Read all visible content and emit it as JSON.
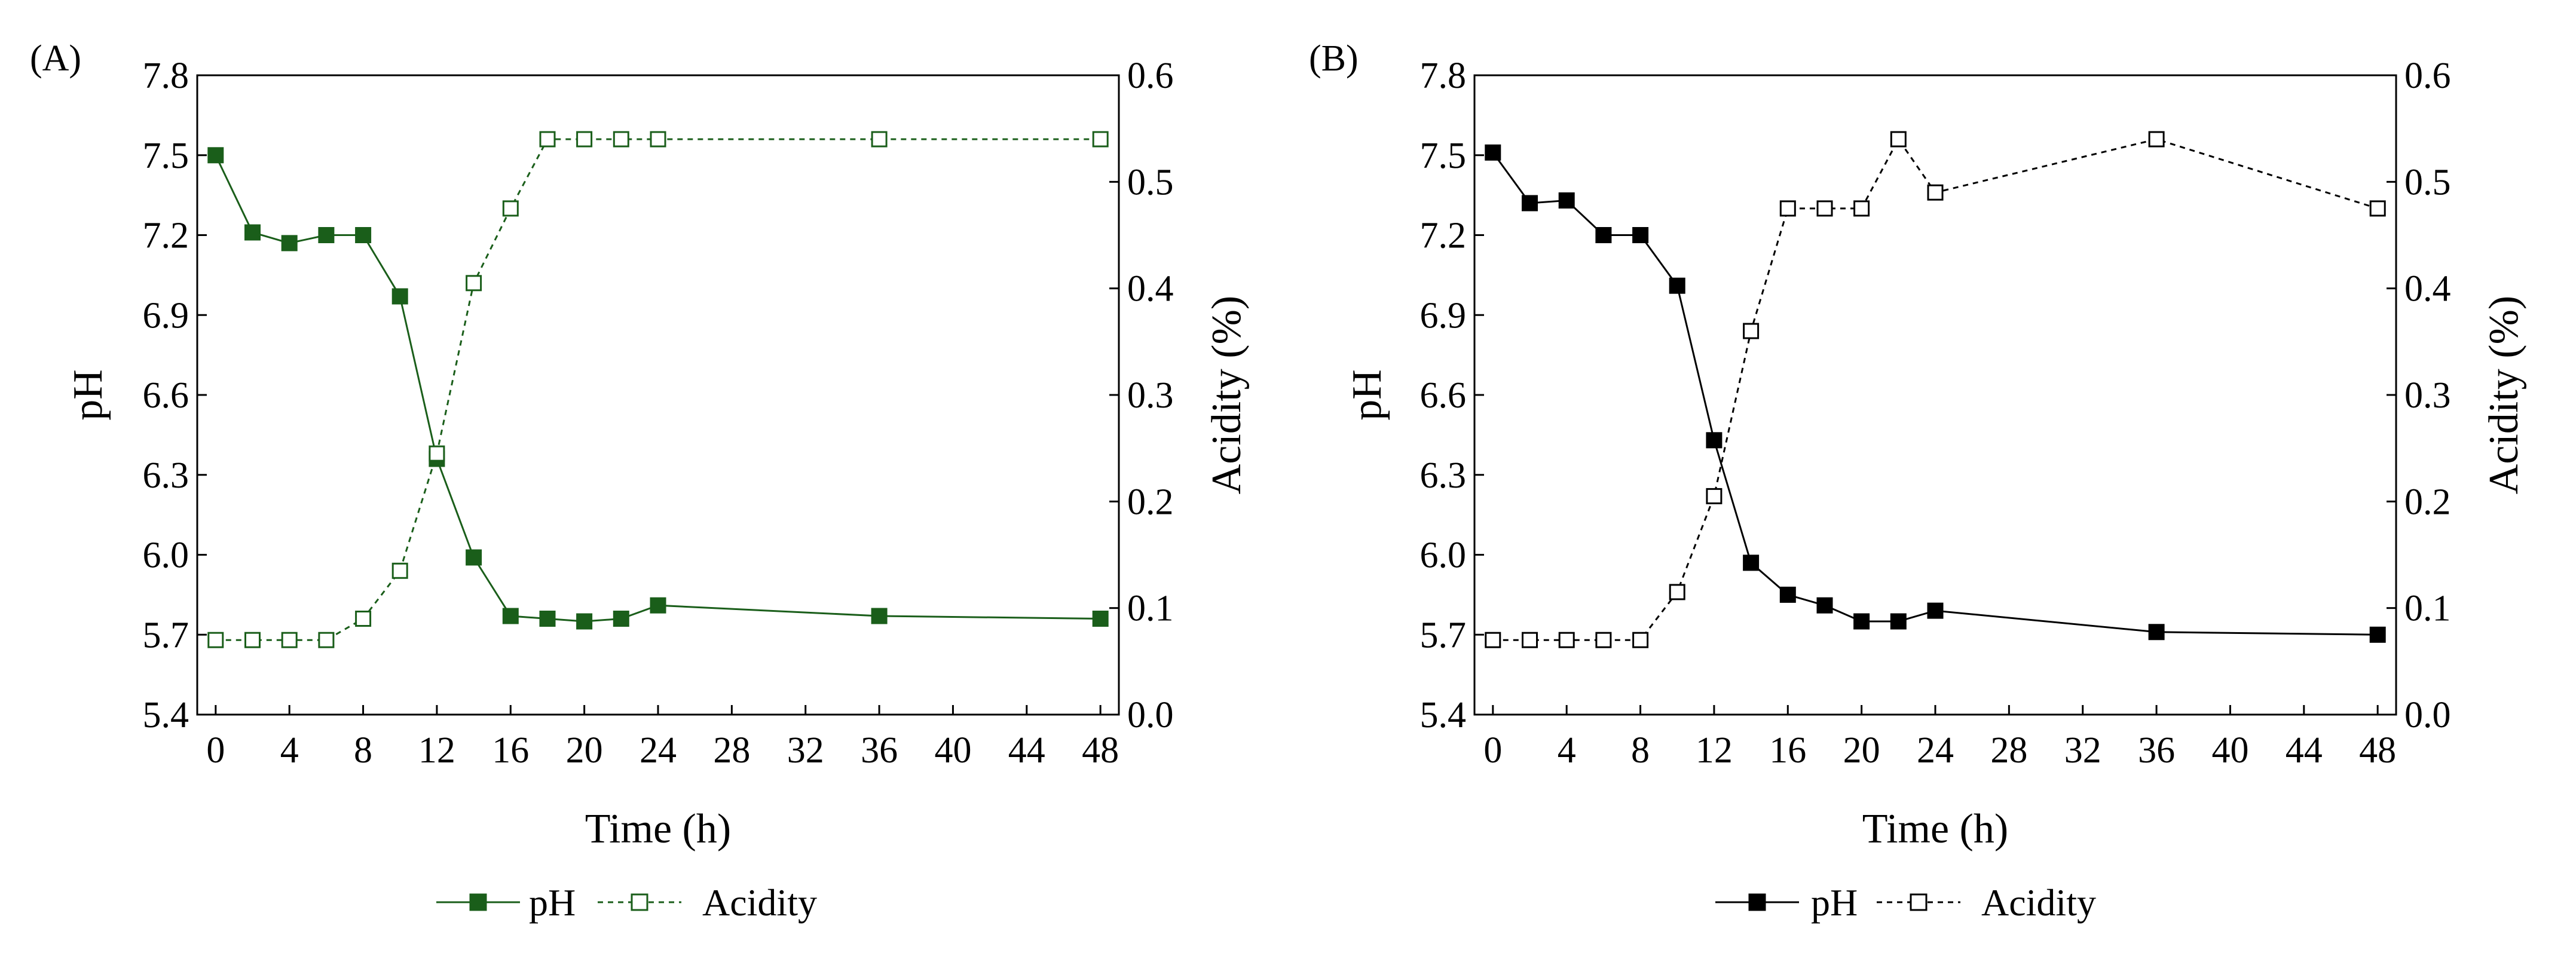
{
  "figure": {
    "background": "#ffffff"
  },
  "chart_data": [
    {
      "panel_label": "(A)",
      "type": "line",
      "color": "#1a5e1a",
      "xlabel": "Time (h)",
      "ylabel_left": "pH",
      "ylabel_right": "Acidity (%)",
      "x_ticks": [
        0,
        4,
        8,
        12,
        16,
        20,
        24,
        28,
        32,
        36,
        40,
        44,
        48
      ],
      "xlim": [
        -1,
        49
      ],
      "ylim_left": [
        5.4,
        7.8
      ],
      "y_ticks_left": [
        "5.4",
        "5.7",
        "6.0",
        "6.3",
        "6.6",
        "6.9",
        "7.2",
        "7.5",
        "7.8"
      ],
      "ylim_right": [
        0.0,
        0.6
      ],
      "y_ticks_right": [
        "0.0",
        "0.1",
        "0.2",
        "0.3",
        "0.4",
        "0.5",
        "0.6"
      ],
      "series": [
        {
          "name": "pH",
          "axis": "left",
          "marker": "filled-square",
          "dashed": false,
          "x": [
            0,
            2,
            4,
            6,
            8,
            10,
            12,
            14,
            16,
            18,
            20,
            22,
            24,
            36,
            48
          ],
          "y": [
            7.5,
            7.21,
            7.17,
            7.2,
            7.2,
            6.97,
            6.36,
            5.99,
            5.77,
            5.76,
            5.75,
            5.76,
            5.81,
            5.77,
            5.76
          ]
        },
        {
          "name": "Acidity",
          "axis": "right",
          "marker": "open-square",
          "dashed": true,
          "x": [
            0,
            2,
            4,
            6,
            8,
            10,
            12,
            14,
            16,
            18,
            20,
            22,
            24,
            36,
            48
          ],
          "y": [
            0.07,
            0.07,
            0.07,
            0.07,
            0.09,
            0.135,
            0.245,
            0.405,
            0.475,
            0.54,
            0.54,
            0.54,
            0.54,
            0.54,
            0.54
          ]
        }
      ],
      "legend": {
        "position": "bottom-center",
        "entries": [
          "pH",
          "Acidity"
        ]
      }
    },
    {
      "panel_label": "(B)",
      "type": "line",
      "color": "#000000",
      "xlabel": "Time (h)",
      "ylabel_left": "pH",
      "ylabel_right": "Acidity (%)",
      "x_ticks": [
        0,
        4,
        8,
        12,
        16,
        20,
        24,
        28,
        32,
        36,
        40,
        44,
        48
      ],
      "xlim": [
        -1,
        49
      ],
      "ylim_left": [
        5.4,
        7.8
      ],
      "y_ticks_left": [
        "5.4",
        "5.7",
        "6.0",
        "6.3",
        "6.6",
        "6.9",
        "7.2",
        "7.5",
        "7.8"
      ],
      "ylim_right": [
        0.0,
        0.6
      ],
      "y_ticks_right": [
        "0.0",
        "0.1",
        "0.2",
        "0.3",
        "0.4",
        "0.5",
        "0.6"
      ],
      "series": [
        {
          "name": "pH",
          "axis": "left",
          "marker": "filled-square",
          "dashed": false,
          "x": [
            0,
            2,
            4,
            6,
            8,
            10,
            12,
            14,
            16,
            18,
            20,
            22,
            24,
            36,
            48
          ],
          "y": [
            7.51,
            7.32,
            7.33,
            7.2,
            7.2,
            7.01,
            6.43,
            5.97,
            5.85,
            5.81,
            5.75,
            5.75,
            5.79,
            5.71,
            5.7
          ]
        },
        {
          "name": "Acidity",
          "axis": "right",
          "marker": "open-square",
          "dashed": true,
          "x": [
            0,
            2,
            4,
            6,
            8,
            10,
            12,
            14,
            16,
            18,
            20,
            22,
            24,
            36,
            48
          ],
          "y": [
            0.07,
            0.07,
            0.07,
            0.07,
            0.07,
            0.115,
            0.205,
            0.36,
            0.475,
            0.475,
            0.475,
            0.54,
            0.49,
            0.54,
            0.475
          ]
        }
      ],
      "legend": {
        "position": "bottom-center",
        "entries": [
          "pH",
          "Acidity"
        ]
      }
    }
  ]
}
